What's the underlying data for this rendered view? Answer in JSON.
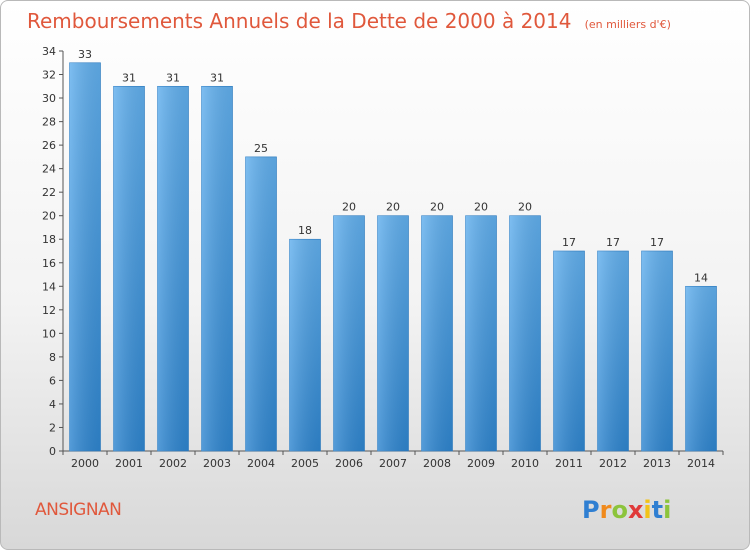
{
  "chart_data": {
    "type": "bar",
    "title": "Remboursements Annuels de la Dette de 2000 à 2014",
    "unit": "(en milliers d'€)",
    "categories": [
      "2000",
      "2001",
      "2002",
      "2003",
      "2004",
      "2005",
      "2006",
      "2007",
      "2008",
      "2009",
      "2010",
      "2011",
      "2012",
      "2013",
      "2014"
    ],
    "values": [
      33,
      31,
      31,
      31,
      25,
      18,
      20,
      20,
      20,
      20,
      20,
      17,
      17,
      17,
      14
    ],
    "ylim": [
      0,
      34
    ],
    "yticks": [
      0,
      2,
      4,
      6,
      8,
      10,
      12,
      14,
      16,
      18,
      20,
      22,
      24,
      26,
      28,
      30,
      32,
      34
    ],
    "grid": false,
    "bar_color": "#4c9fe0"
  },
  "commune": "ANSIGNAN",
  "logo": {
    "letters": [
      "P",
      "r",
      "o",
      "x",
      "i",
      "t",
      "i"
    ],
    "colors": [
      "#2f7fd2",
      "#f08a1c",
      "#8cc43c",
      "#e03a3a",
      "#f2c318",
      "#2f7fd2",
      "#8cc43c"
    ]
  }
}
